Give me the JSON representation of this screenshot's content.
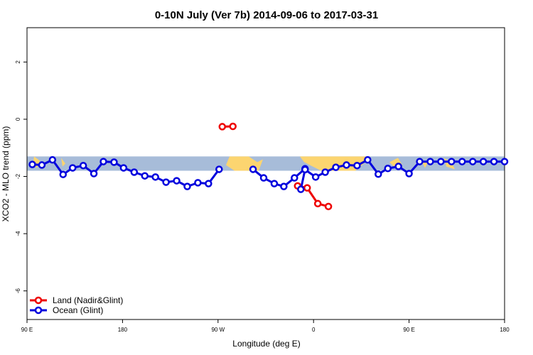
{
  "chart_data": {
    "type": "line",
    "title": "0-10N July (Ver 7b)   2014-09-06 to 2017-03-31",
    "xlabel": "Longitude (deg E)",
    "ylabel": "XCO2 - MLO trend (ppm)",
    "xlim": [
      -90,
      180
    ],
    "ylim": [
      -7,
      3.2
    ],
    "x_ticks": [
      {
        "value": -90,
        "label": "90 E"
      },
      {
        "value": -180,
        "label": "180"
      },
      {
        "value": -270,
        "label": "90 W"
      },
      {
        "value": -360,
        "label": "0"
      },
      {
        "value": -450,
        "label": "90 E"
      },
      {
        "value": -540,
        "label": "180"
      }
    ],
    "y_ticks": [
      {
        "value": 2,
        "label": "2"
      },
      {
        "value": 0,
        "label": "0"
      },
      {
        "value": -2,
        "label": "-2"
      },
      {
        "value": -4,
        "label": "-4"
      },
      {
        "value": -6,
        "label": "-6"
      }
    ],
    "map_band": {
      "y_top": -1.3,
      "y_bottom": -1.8,
      "ocean_color": "#a7bcd9",
      "land_color": "#fcd570"
    },
    "series": [
      {
        "name": "Land (Nadir&Glint)",
        "color": "#ee0000",
        "segments": [
          {
            "x": [
              -284,
              -274
            ],
            "y": [
              -0.25,
              -0.26
            ]
          },
          {
            "x": [
              -374,
              -364,
              -354,
              -345
            ],
            "y": [
              -3.05,
              -2.95,
              -2.4,
              -2.33
            ]
          }
        ]
      },
      {
        "name": "Ocean (Glint)",
        "color": "#0000dd",
        "segments": [
          {
            "x": [
              -95,
              -104,
              -114,
              -124,
              -133,
              -143,
              -153,
              -162,
              -172,
              -181,
              -191,
              -201,
              -211,
              -221,
              -231,
              -241,
              -251,
              -261,
              -271
            ],
            "y": [
              -1.58,
              -1.6,
              -1.42,
              -1.93,
              -1.7,
              -1.62,
              -1.9,
              -1.48,
              -1.5,
              -1.7,
              -1.85,
              -1.98,
              -2.02,
              -2.2,
              -2.15,
              -2.35,
              -2.22,
              -2.25,
              -1.75
            ]
          },
          {
            "x": [
              -303,
              -313,
              -323,
              -332,
              -342,
              -352
            ],
            "y": [
              -1.75,
              -2.05,
              -2.25,
              -2.35,
              -2.05,
              -1.73
            ]
          },
          {
            "x": [
              -348,
              -352,
              -362,
              -371,
              -381,
              -391,
              -401,
              -411,
              -421,
              -430,
              -440,
              -450,
              -460,
              -470,
              -480,
              -490,
              -500,
              -510,
              -520,
              -530,
              -540
            ],
            "y": [
              -2.45,
              -1.76,
              -2.02,
              -1.85,
              -1.68,
              -1.6,
              -1.62,
              -1.42,
              -1.92,
              -1.72,
              -1.65,
              -1.9,
              -1.48,
              -1.48,
              -1.48,
              -1.48,
              -1.48,
              -1.48,
              -1.48,
              -1.48,
              -1.48
            ]
          }
        ]
      }
    ],
    "legend": {
      "position": "bottom-left",
      "entries": [
        "Land (Nadir&Glint)",
        "Ocean (Glint)"
      ]
    }
  }
}
